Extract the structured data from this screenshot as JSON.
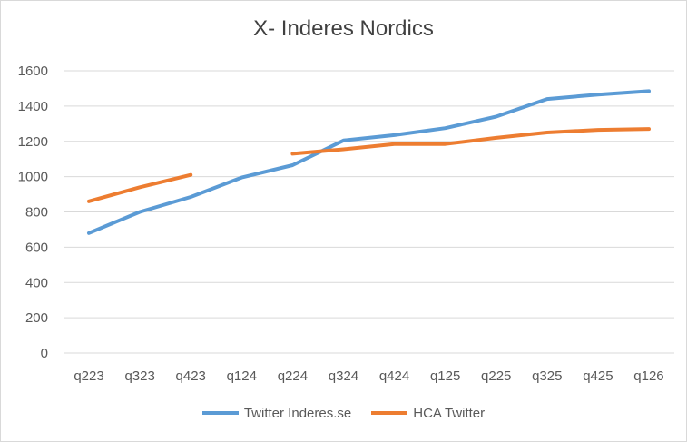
{
  "chart_data": {
    "type": "line",
    "title": "X- Inderes Nordics",
    "categories": [
      "q223",
      "q323",
      "q423",
      "q124",
      "q224",
      "q324",
      "q424",
      "q125",
      "q225",
      "q325",
      "q425",
      "q126"
    ],
    "ylim": [
      0,
      1600
    ],
    "yticks": [
      0,
      200,
      400,
      600,
      800,
      1000,
      1200,
      1400,
      1600
    ],
    "grid": true,
    "legend_position": "bottom",
    "series": [
      {
        "name": "Twitter Inderes.se",
        "color": "#5b9bd5",
        "values": [
          680,
          800,
          885,
          995,
          1065,
          1205,
          1235,
          1275,
          1340,
          1440,
          1465,
          1485
        ]
      },
      {
        "name": "HCA Twitter",
        "color": "#ed7d31",
        "values": [
          860,
          940,
          1010,
          null,
          1130,
          1155,
          1185,
          1185,
          1220,
          1250,
          1265,
          1270
        ]
      }
    ]
  }
}
